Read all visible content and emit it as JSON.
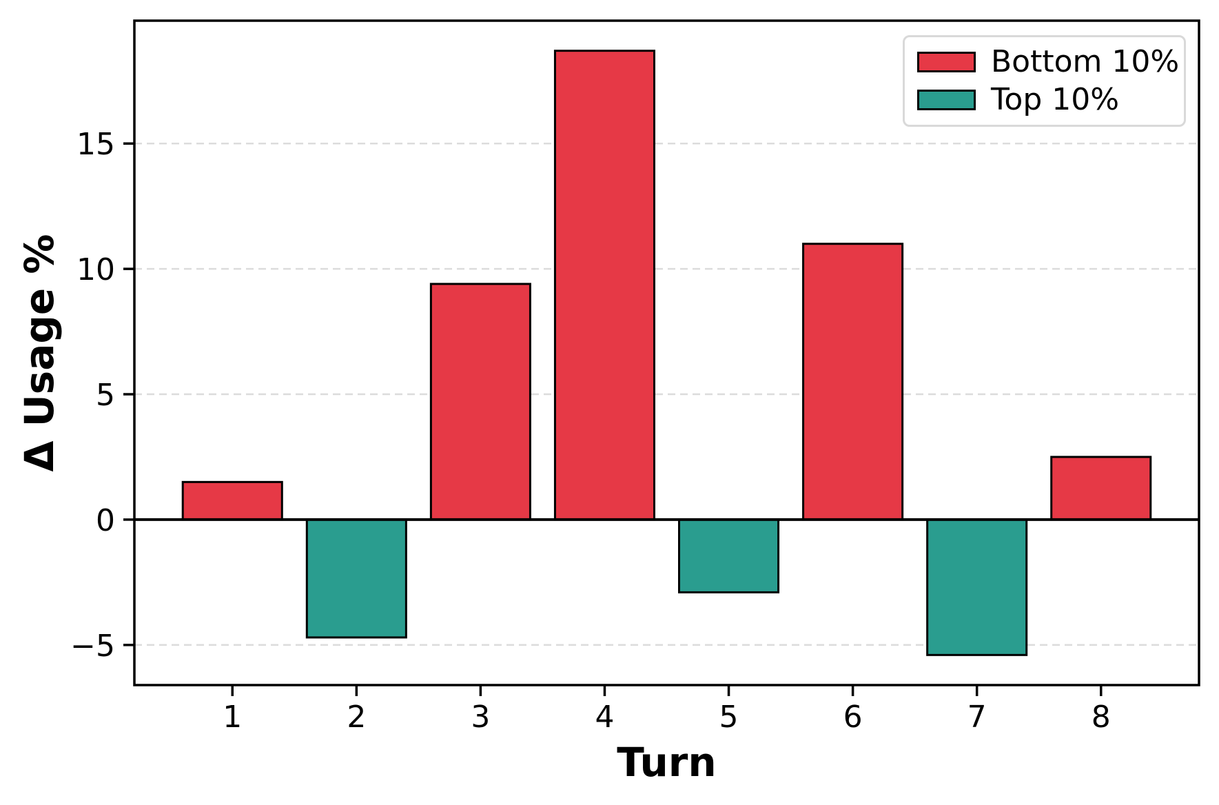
{
  "figure": {
    "background": "#ffffff",
    "xlabel": "Turn",
    "ylabel": "Δ Usage %"
  },
  "legend": {
    "position": "upper right",
    "items": [
      {
        "label": "Bottom 10%",
        "color": "#e63946"
      },
      {
        "label": "Top 10%",
        "color": "#2a9d8f"
      }
    ]
  },
  "chart_data": {
    "type": "bar",
    "title": "",
    "xlabel": "Turn",
    "ylabel": "Δ Usage %",
    "categories": [
      1,
      2,
      3,
      4,
      5,
      6,
      7,
      8
    ],
    "series": [
      {
        "name": "Bottom 10%",
        "color": "#e63946",
        "values": [
          1.5,
          null,
          9.4,
          18.7,
          null,
          11.0,
          null,
          2.5
        ]
      },
      {
        "name": "Top 10%",
        "color": "#2a9d8f",
        "values": [
          null,
          -4.7,
          null,
          null,
          -2.9,
          null,
          -5.4,
          null
        ]
      }
    ],
    "bar_width": 0.8,
    "bar_edge_color": "#000000",
    "bar_edge_width": 3,
    "xlim": [
      0.21,
      8.79
    ],
    "ylim": [
      -6.6,
      19.9
    ],
    "yticks": [
      {
        "value": -5,
        "label": "−5"
      },
      {
        "value": 0,
        "label": "0"
      },
      {
        "value": 5,
        "label": "5"
      },
      {
        "value": 10,
        "label": "10"
      },
      {
        "value": 15,
        "label": "15"
      }
    ],
    "xticks": [
      {
        "value": 1,
        "label": "1"
      },
      {
        "value": 2,
        "label": "2"
      },
      {
        "value": 3,
        "label": "3"
      },
      {
        "value": 4,
        "label": "4"
      },
      {
        "value": 5,
        "label": "5"
      },
      {
        "value": 6,
        "label": "6"
      },
      {
        "value": 7,
        "label": "7"
      },
      {
        "value": 8,
        "label": "8"
      }
    ],
    "grid": {
      "axis": "y",
      "style": "dashed",
      "color": "#dcdcdc",
      "width": 2.5
    },
    "zero_line": {
      "y": 0,
      "color": "#000000",
      "width": 4
    },
    "spine_color": "#000000",
    "spine_width": 3.5,
    "legend_position": "upper right"
  }
}
